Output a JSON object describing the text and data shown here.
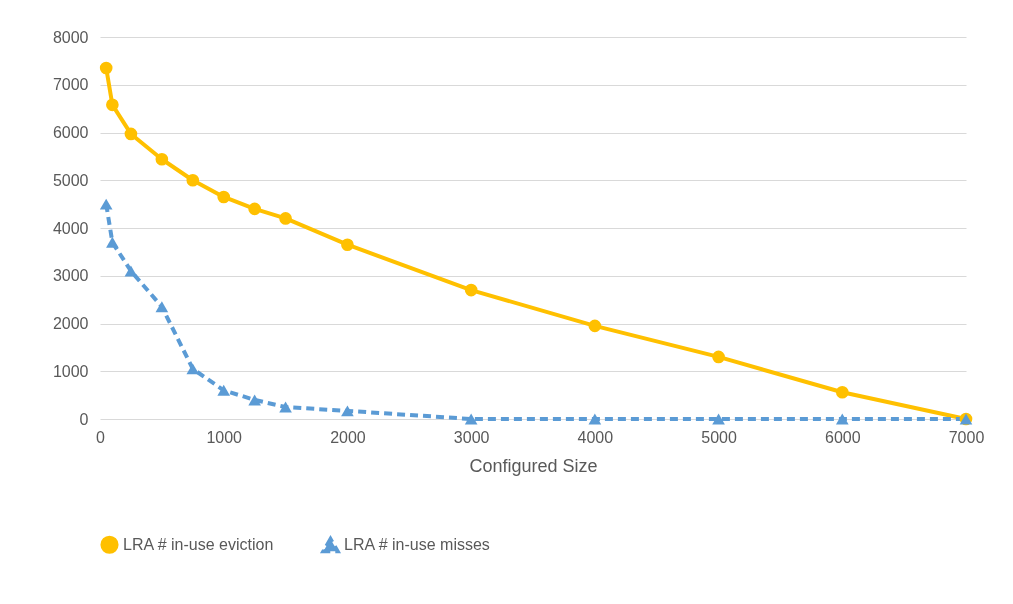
{
  "chart_data": {
    "type": "line",
    "xlabel": "Configured Size",
    "x": [
      50,
      100,
      250,
      500,
      750,
      1000,
      1250,
      1500,
      2000,
      3000,
      4000,
      5000,
      6000,
      7000
    ],
    "xlim": [
      0,
      7000
    ],
    "xticks": [
      0,
      1000,
      2000,
      3000,
      4000,
      5000,
      6000,
      7000
    ],
    "ylim": [
      0,
      8000
    ],
    "yticks": [
      0,
      1000,
      2000,
      3000,
      4000,
      5000,
      6000,
      7000,
      8000
    ],
    "grid": "y",
    "legend": "bottom",
    "series": [
      {
        "name": "LRA # in-use eviction",
        "color": "#ffc000",
        "marker": "circle",
        "line_style": "solid",
        "values": [
          7350,
          6580,
          5970,
          5440,
          5000,
          4650,
          4400,
          4200,
          3650,
          2700,
          1950,
          1300,
          560,
          0
        ]
      },
      {
        "name": "LRA # in-use misses",
        "color": "#5b9bd5",
        "marker": "triangle",
        "line_style": "dashed",
        "values": [
          4500,
          3700,
          3100,
          2350,
          1050,
          600,
          400,
          250,
          170,
          0,
          0,
          0,
          0,
          0
        ]
      }
    ]
  }
}
